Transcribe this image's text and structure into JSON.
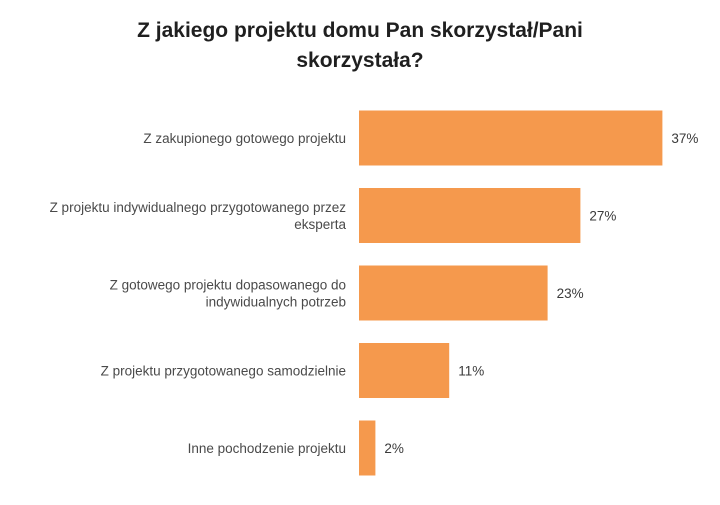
{
  "chart_data": {
    "type": "bar",
    "orientation": "horizontal",
    "title_lines": [
      "Z jakiego projektu domu Pan skorzystał/Pani",
      "skorzystała?"
    ],
    "categories": [
      [
        "Z zakupionego gotowego projektu"
      ],
      [
        "Z projektu indywidualnego przygotowanego przez",
        "eksperta"
      ],
      [
        "Z gotowego projektu dopasowanego do",
        "indywidualnych potrzeb"
      ],
      [
        "Z projektu przygotowanego samodzielnie"
      ],
      [
        "Inne pochodzenie projektu"
      ]
    ],
    "values": [
      37,
      27,
      23,
      11,
      2
    ],
    "value_labels": [
      "37%",
      "27%",
      "23%",
      "11%",
      "2%"
    ],
    "unit": "%",
    "bar_color": "#f5994d",
    "grid": false,
    "legend": "none"
  }
}
